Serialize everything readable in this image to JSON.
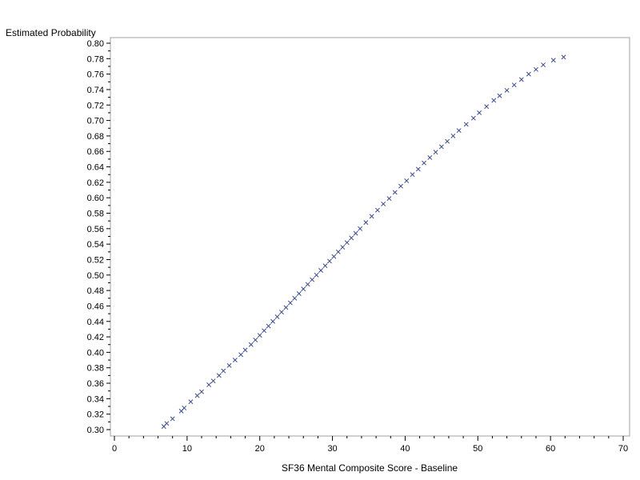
{
  "chart_data": {
    "type": "scatter",
    "title": "",
    "xlabel": "SF36 Mental Composite Score - Baseline",
    "ylabel": "Estimated Probability",
    "xlim": [
      0,
      70
    ],
    "ylim": [
      0.3,
      0.8
    ],
    "x_ticks": [
      "0",
      "10",
      "20",
      "30",
      "40",
      "50",
      "60",
      "70"
    ],
    "y_ticks": [
      "0.30",
      "0.32",
      "0.34",
      "0.36",
      "0.38",
      "0.40",
      "0.42",
      "0.44",
      "0.46",
      "0.48",
      "0.50",
      "0.52",
      "0.54",
      "0.56",
      "0.58",
      "0.60",
      "0.62",
      "0.64",
      "0.66",
      "0.68",
      "0.70",
      "0.72",
      "0.74",
      "0.76",
      "0.78",
      "0.80"
    ],
    "grid": false,
    "legend": "none",
    "marker_color": "#3b4a8a",
    "marker": "x",
    "points": [
      [
        6.8,
        0.304
      ],
      [
        7.2,
        0.308
      ],
      [
        8.0,
        0.314
      ],
      [
        9.2,
        0.324
      ],
      [
        9.6,
        0.328
      ],
      [
        10.5,
        0.336
      ],
      [
        11.4,
        0.344
      ],
      [
        12.0,
        0.349
      ],
      [
        13.0,
        0.358
      ],
      [
        13.6,
        0.363
      ],
      [
        14.4,
        0.37
      ],
      [
        15.0,
        0.376
      ],
      [
        15.8,
        0.383
      ],
      [
        16.6,
        0.39
      ],
      [
        17.4,
        0.397
      ],
      [
        18.0,
        0.403
      ],
      [
        18.8,
        0.41
      ],
      [
        19.4,
        0.416
      ],
      [
        20.0,
        0.422
      ],
      [
        20.6,
        0.428
      ],
      [
        21.2,
        0.434
      ],
      [
        21.8,
        0.44
      ],
      [
        22.4,
        0.446
      ],
      [
        23.0,
        0.452
      ],
      [
        23.6,
        0.458
      ],
      [
        24.2,
        0.464
      ],
      [
        24.8,
        0.47
      ],
      [
        25.4,
        0.476
      ],
      [
        26.0,
        0.482
      ],
      [
        26.6,
        0.488
      ],
      [
        27.2,
        0.494
      ],
      [
        27.8,
        0.5
      ],
      [
        28.4,
        0.506
      ],
      [
        29.0,
        0.512
      ],
      [
        29.6,
        0.518
      ],
      [
        30.2,
        0.524
      ],
      [
        30.8,
        0.53
      ],
      [
        31.4,
        0.536
      ],
      [
        32.0,
        0.542
      ],
      [
        32.6,
        0.548
      ],
      [
        33.2,
        0.554
      ],
      [
        33.8,
        0.56
      ],
      [
        34.6,
        0.568
      ],
      [
        35.4,
        0.576
      ],
      [
        36.2,
        0.584
      ],
      [
        37.0,
        0.592
      ],
      [
        37.8,
        0.599
      ],
      [
        38.6,
        0.607
      ],
      [
        39.4,
        0.615
      ],
      [
        40.2,
        0.622
      ],
      [
        41.0,
        0.63
      ],
      [
        41.8,
        0.637
      ],
      [
        42.6,
        0.645
      ],
      [
        43.4,
        0.652
      ],
      [
        44.2,
        0.659
      ],
      [
        45.0,
        0.666
      ],
      [
        45.8,
        0.673
      ],
      [
        46.6,
        0.68
      ],
      [
        47.4,
        0.687
      ],
      [
        48.4,
        0.695
      ],
      [
        49.4,
        0.703
      ],
      [
        50.2,
        0.71
      ],
      [
        51.2,
        0.718
      ],
      [
        52.2,
        0.726
      ],
      [
        53.0,
        0.732
      ],
      [
        54.0,
        0.739
      ],
      [
        55.0,
        0.746
      ],
      [
        56.0,
        0.753
      ],
      [
        57.0,
        0.76
      ],
      [
        58.0,
        0.766
      ],
      [
        59.0,
        0.772
      ],
      [
        60.4,
        0.778
      ],
      [
        61.8,
        0.782
      ]
    ]
  }
}
